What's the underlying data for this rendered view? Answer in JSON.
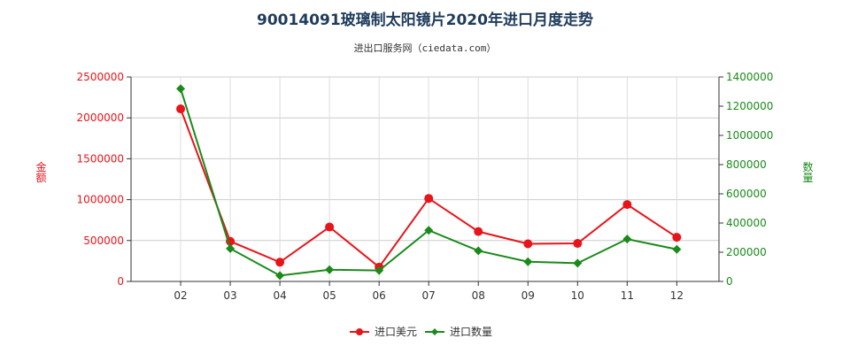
{
  "chart_data": {
    "type": "line",
    "title": "90014091玻璃制太阳镜片2020年进口月度走势",
    "subtitle": "进出口服务网（ciedata.com）",
    "categories": [
      "02",
      "03",
      "04",
      "05",
      "06",
      "07",
      "08",
      "09",
      "10",
      "11",
      "12"
    ],
    "y_left": {
      "label": "金额",
      "min": 0,
      "max": 2500000,
      "ticks": [
        0,
        500000,
        1000000,
        1500000,
        2000000,
        2500000
      ],
      "color": "#e8141a"
    },
    "y_right": {
      "label": "数量",
      "min": 0,
      "max": 1400000,
      "ticks": [
        0,
        200000,
        400000,
        600000,
        800000,
        1000000,
        1200000,
        1400000
      ],
      "color": "#1a8a1a"
    },
    "grid": true,
    "legend_position": "bottom",
    "series": [
      {
        "name": "进口美元",
        "axis": "left",
        "color": "#e8141a",
        "values": [
          2110000,
          490000,
          235000,
          665000,
          175000,
          1015000,
          610000,
          460000,
          465000,
          940000,
          540000
        ]
      },
      {
        "name": "进口数量",
        "axis": "right",
        "color": "#1a8a1a",
        "values": [
          1320000,
          225000,
          40000,
          80000,
          75000,
          350000,
          210000,
          135000,
          125000,
          290000,
          220000
        ]
      }
    ]
  }
}
